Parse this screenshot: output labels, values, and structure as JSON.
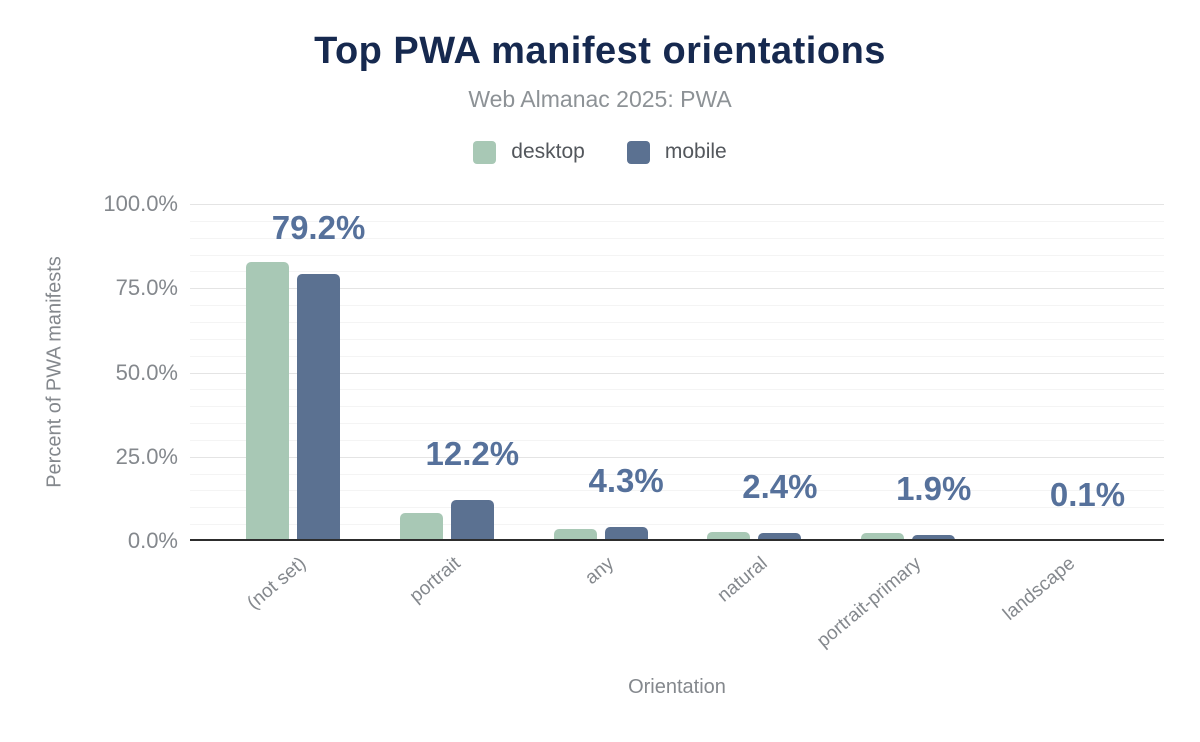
{
  "chart_data": {
    "type": "bar",
    "title": "Top PWA manifest orientations",
    "subtitle": "Web Almanac 2025: PWA",
    "xlabel": "Orientation",
    "ylabel": "Percent of PWA manifests",
    "categories": [
      "(not set)",
      "portrait",
      "any",
      "natural",
      "portrait-primary",
      "landscape"
    ],
    "series": [
      {
        "name": "desktop",
        "color": "#a8c8b5",
        "values": [
          82.9,
          8.2,
          3.7,
          2.7,
          2.4,
          0.1
        ]
      },
      {
        "name": "mobile",
        "color": "#5b7191",
        "values": [
          79.2,
          12.2,
          4.3,
          2.4,
          1.9,
          0.1
        ]
      }
    ],
    "annotations": {
      "labels": [
        "79.2%",
        "12.2%",
        "4.3%",
        "2.4%",
        "1.9%",
        "0.1%"
      ],
      "annotated_series": "mobile",
      "color": "#56719b"
    },
    "y_axis": {
      "ticks": [
        0,
        25,
        50,
        75,
        100
      ],
      "tick_labels": [
        "0.0%",
        "25.0%",
        "50.0%",
        "75.0%",
        "100.0%"
      ],
      "lim": [
        0,
        100
      ],
      "minor_step": 5
    },
    "grid": {
      "major": "on",
      "minor": "on"
    },
    "legend_position": "top",
    "colors": {
      "title": "#16294f",
      "subtitle": "#8d9296",
      "axis_text": "#84888d",
      "axis_line": "#2d2d2d"
    }
  }
}
